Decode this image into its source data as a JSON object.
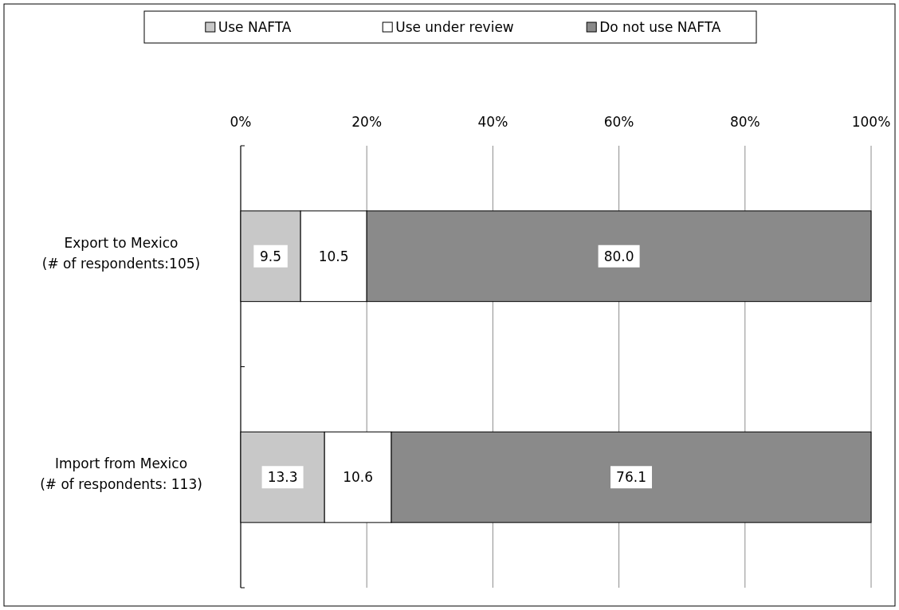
{
  "chart_data": {
    "type": "bar",
    "orientation": "horizontal",
    "stacked": true,
    "categories": [
      "Export to Mexico\n(# of respondents:105)",
      "Import from Mexico\n(# of respondents: 113)"
    ],
    "series": [
      {
        "name": "Use NAFTA",
        "color": "#c8c8c8",
        "values": [
          9.5,
          13.3
        ],
        "value_labels": [
          "9.5",
          "13.3"
        ]
      },
      {
        "name": "Use under review",
        "color": "#ffffff",
        "values": [
          10.5,
          10.6
        ],
        "value_labels": [
          "10.5",
          "10.6"
        ]
      },
      {
        "name": "Do not use NAFTA",
        "color": "#8a8a8a",
        "values": [
          80.0,
          76.1
        ],
        "value_labels": [
          "80.0",
          "76.1"
        ]
      }
    ],
    "xlim": [
      0,
      100
    ],
    "xticks": [
      {
        "value": 0,
        "label": "0%"
      },
      {
        "value": 20,
        "label": "20%"
      },
      {
        "value": 40,
        "label": "40%"
      },
      {
        "value": 60,
        "label": "60%"
      },
      {
        "value": 80,
        "label": "80%"
      },
      {
        "value": 100,
        "label": "100%"
      }
    ],
    "grid": "x",
    "legend": "top"
  }
}
